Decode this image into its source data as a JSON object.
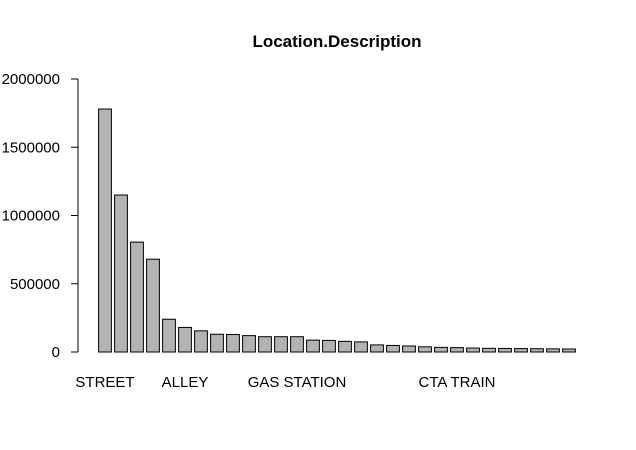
{
  "chart_data": {
    "type": "bar",
    "title": "Location.Description",
    "xlabel": "",
    "ylabel": "",
    "ylim": [
      0,
      2000000
    ],
    "y_ticks": [
      0,
      500000,
      1000000,
      1500000,
      2000000
    ],
    "y_tick_labels": [
      "0",
      "500000",
      "1000000",
      "1500000",
      "2000000"
    ],
    "visible_category_labels": [
      {
        "index": 0,
        "label": "STREET"
      },
      {
        "index": 5,
        "label": "ALLEY"
      },
      {
        "index": 12,
        "label": "GAS STATION"
      },
      {
        "index": 22,
        "label": "CTA TRAIN"
      }
    ],
    "categories": [
      "STREET",
      "",
      "",
      "",
      "",
      "ALLEY",
      "",
      "",
      "",
      "",
      "",
      "",
      "GAS STATION",
      "",
      "",
      "",
      "",
      "",
      "",
      "",
      "",
      "",
      "CTA TRAIN",
      "",
      "",
      "",
      "",
      "",
      "",
      ""
    ],
    "values": [
      1780000,
      1150000,
      805000,
      680000,
      240000,
      180000,
      155000,
      130000,
      128000,
      120000,
      112000,
      112000,
      112000,
      87000,
      85000,
      78000,
      74000,
      52000,
      48000,
      44000,
      38000,
      34000,
      32000,
      29000,
      27000,
      26000,
      25000,
      24000,
      23000,
      22000
    ],
    "bar_fill": "#b3b3b3",
    "bar_stroke": "#000000",
    "grid": false,
    "legend": "none"
  }
}
